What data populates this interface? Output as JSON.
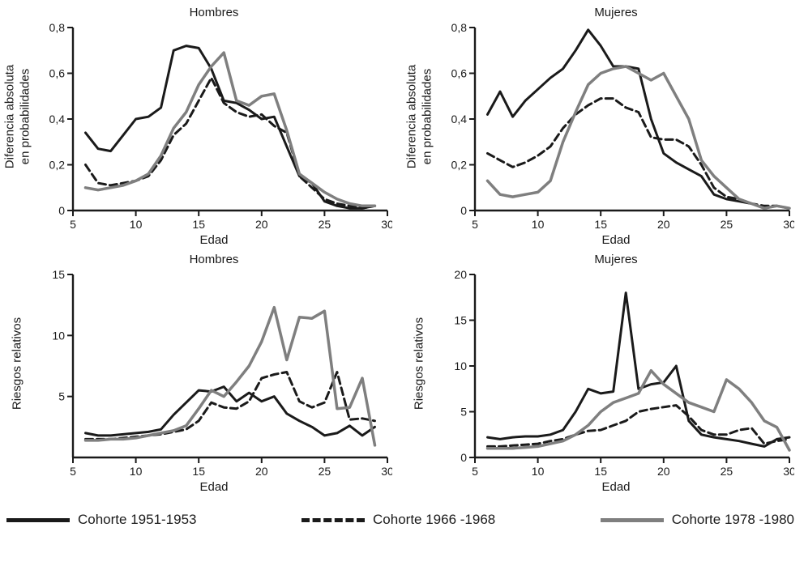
{
  "colors": {
    "axis": "#1a1a1a",
    "black": "#1a1a1a",
    "gray": "#7f7f7f",
    "background": "#ffffff"
  },
  "legend": [
    {
      "label": "Cohorte 1951-1953",
      "style": "solid",
      "color": "#1a1a1a"
    },
    {
      "label": "Cohorte 1966 -1968",
      "style": "dashed",
      "color": "#1a1a1a"
    },
    {
      "label": "Cohorte 1978 -1980",
      "style": "solid",
      "color": "#7f7f7f"
    }
  ],
  "chart_data": [
    {
      "type": "line",
      "title": "Hombres",
      "ylabel_line1": "Diferencia absoluta",
      "ylabel_line2": "en probabilidades",
      "xlabel": "Edad",
      "xlim": [
        5,
        30
      ],
      "ylim": [
        0,
        0.8
      ],
      "xticks": [
        5,
        10,
        15,
        20,
        25,
        30
      ],
      "ytick_values": [
        0,
        0.2,
        0.4,
        0.6,
        0.8
      ],
      "ytick_labels": [
        "0",
        "0,2",
        "0,4",
        "0,6",
        "0,8"
      ],
      "x": [
        6,
        7,
        8,
        9,
        10,
        11,
        12,
        13,
        14,
        15,
        16,
        17,
        18,
        19,
        20,
        21,
        22,
        23,
        24,
        25,
        26,
        27,
        28,
        29
      ],
      "series": [
        {
          "name": "Cohorte 1951-1953",
          "style": "solid",
          "color": "#1a1a1a",
          "stroke_width": 3,
          "values": [
            0.34,
            0.27,
            0.26,
            0.33,
            0.4,
            0.41,
            0.45,
            0.7,
            0.72,
            0.71,
            0.62,
            0.48,
            0.47,
            0.44,
            0.4,
            0.41,
            0.28,
            0.15,
            0.12,
            0.04,
            0.02,
            0.01,
            0.01,
            0.02
          ]
        },
        {
          "name": "Cohorte 1966 -1968",
          "style": "dashed",
          "color": "#1a1a1a",
          "stroke_width": 3,
          "values": [
            0.2,
            0.12,
            0.11,
            0.12,
            0.13,
            0.15,
            0.22,
            0.33,
            0.38,
            0.48,
            0.58,
            0.47,
            0.43,
            0.41,
            0.42,
            0.37,
            0.34,
            0.15,
            0.1,
            0.05,
            0.03,
            0.02,
            0.01,
            0.02
          ]
        },
        {
          "name": "Cohorte 1978 -1980",
          "style": "solid",
          "color": "#7f7f7f",
          "stroke_width": 3.5,
          "values": [
            0.1,
            0.09,
            0.1,
            0.11,
            0.13,
            0.16,
            0.24,
            0.36,
            0.43,
            0.55,
            0.63,
            0.69,
            0.48,
            0.46,
            0.5,
            0.51,
            0.35,
            0.16,
            0.12,
            0.08,
            0.05,
            0.03,
            0.02,
            0.02
          ]
        }
      ]
    },
    {
      "type": "line",
      "title": "Mujeres",
      "ylabel_line1": "Diferencia absoluta",
      "ylabel_line2": "en probabilidades",
      "xlabel": "Edad",
      "xlim": [
        5,
        30
      ],
      "ylim": [
        0,
        0.8
      ],
      "xticks": [
        5,
        10,
        15,
        20,
        25,
        30
      ],
      "ytick_values": [
        0,
        0.2,
        0.4,
        0.6,
        0.8
      ],
      "ytick_labels": [
        "0",
        "0,2",
        "0,4",
        "0,6",
        "0,8"
      ],
      "x": [
        6,
        7,
        8,
        9,
        10,
        11,
        12,
        13,
        14,
        15,
        16,
        17,
        18,
        19,
        20,
        21,
        22,
        23,
        24,
        25,
        26,
        27,
        28,
        29,
        30
      ],
      "series": [
        {
          "name": "Cohorte 1951-1953",
          "style": "solid",
          "color": "#1a1a1a",
          "stroke_width": 3,
          "values": [
            0.42,
            0.52,
            0.41,
            0.48,
            0.53,
            0.58,
            0.62,
            0.7,
            0.79,
            0.72,
            0.63,
            0.63,
            0.62,
            0.4,
            0.25,
            0.21,
            0.18,
            0.15,
            0.07,
            0.05,
            0.04,
            0.03,
            0.01,
            0.02,
            0.01
          ]
        },
        {
          "name": "Cohorte 1966 -1968",
          "style": "dashed",
          "color": "#1a1a1a",
          "stroke_width": 3,
          "values": [
            0.25,
            0.22,
            0.19,
            0.21,
            0.24,
            0.28,
            0.36,
            0.42,
            0.46,
            0.49,
            0.49,
            0.45,
            0.43,
            0.32,
            0.31,
            0.31,
            0.28,
            0.2,
            0.1,
            0.06,
            0.05,
            0.03,
            0.02,
            0.02,
            0.01
          ]
        },
        {
          "name": "Cohorte 1978 -1980",
          "style": "solid",
          "color": "#7f7f7f",
          "stroke_width": 3.5,
          "values": [
            0.13,
            0.07,
            0.06,
            0.07,
            0.08,
            0.13,
            0.3,
            0.43,
            0.55,
            0.6,
            0.62,
            0.63,
            0.6,
            0.57,
            0.6,
            0.5,
            0.4,
            0.22,
            0.15,
            0.1,
            0.05,
            0.03,
            0.01,
            0.02,
            0.01
          ]
        }
      ]
    },
    {
      "type": "line",
      "title": "Hombres",
      "ylabel_line1": "Riesgos relativos",
      "ylabel_line2": "",
      "xlabel": "Edad",
      "xlim": [
        5,
        30
      ],
      "ylim": [
        0,
        15
      ],
      "xticks": [
        5,
        10,
        15,
        20,
        25,
        30
      ],
      "ytick_values": [
        5,
        10,
        15
      ],
      "ytick_labels": [
        "5",
        "10",
        "15"
      ],
      "x": [
        6,
        7,
        8,
        9,
        10,
        11,
        12,
        13,
        14,
        15,
        16,
        17,
        18,
        19,
        20,
        21,
        22,
        23,
        24,
        25,
        26,
        27,
        28,
        29
      ],
      "series": [
        {
          "name": "Cohorte 1951-1953",
          "style": "solid",
          "color": "#1a1a1a",
          "stroke_width": 3,
          "values": [
            2.0,
            1.8,
            1.8,
            1.9,
            2.0,
            2.1,
            2.3,
            3.5,
            4.5,
            5.5,
            5.4,
            5.8,
            4.6,
            5.3,
            4.6,
            5.0,
            3.6,
            3.0,
            2.5,
            1.8,
            2.0,
            2.6,
            1.8,
            2.5
          ]
        },
        {
          "name": "Cohorte 1966 -1968",
          "style": "dashed",
          "color": "#1a1a1a",
          "stroke_width": 3,
          "values": [
            1.5,
            1.5,
            1.5,
            1.6,
            1.7,
            1.8,
            1.9,
            2.1,
            2.3,
            3.0,
            4.5,
            4.1,
            4.0,
            4.6,
            6.5,
            6.8,
            7.0,
            4.6,
            4.1,
            4.5,
            7.0,
            3.1,
            3.2,
            3.0
          ]
        },
        {
          "name": "Cohorte 1978 -1980",
          "style": "solid",
          "color": "#7f7f7f",
          "stroke_width": 3.5,
          "values": [
            1.4,
            1.4,
            1.5,
            1.5,
            1.6,
            1.8,
            2.0,
            2.2,
            2.6,
            4.0,
            5.5,
            5.0,
            6.2,
            7.5,
            9.5,
            12.3,
            8.0,
            11.5,
            11.4,
            12.0,
            4.0,
            4.1,
            6.5,
            1.0
          ]
        }
      ]
    },
    {
      "type": "line",
      "title": "Mujeres",
      "ylabel_line1": "Riesgos relativos",
      "ylabel_line2": "",
      "xlabel": "Edad",
      "xlim": [
        5,
        30
      ],
      "ylim": [
        0,
        20
      ],
      "xticks": [
        5,
        10,
        15,
        20,
        25,
        30
      ],
      "ytick_values": [
        0,
        5,
        10,
        15,
        20
      ],
      "ytick_labels": [
        "0",
        "5",
        "10",
        "15",
        "20"
      ],
      "x": [
        6,
        7,
        8,
        9,
        10,
        11,
        12,
        13,
        14,
        15,
        16,
        17,
        18,
        19,
        20,
        21,
        22,
        23,
        24,
        25,
        26,
        27,
        28,
        29,
        30
      ],
      "series": [
        {
          "name": "Cohorte 1951-1953",
          "style": "solid",
          "color": "#1a1a1a",
          "stroke_width": 3,
          "values": [
            2.2,
            2.0,
            2.2,
            2.3,
            2.3,
            2.5,
            3.0,
            5.0,
            7.5,
            7.0,
            7.2,
            18.0,
            7.5,
            8.0,
            8.2,
            10.0,
            4.0,
            2.5,
            2.2,
            2.0,
            1.8,
            1.5,
            1.2,
            2.0,
            2.2
          ]
        },
        {
          "name": "Cohorte 1966 -1968",
          "style": "dashed",
          "color": "#1a1a1a",
          "stroke_width": 3,
          "values": [
            1.2,
            1.2,
            1.3,
            1.4,
            1.5,
            1.8,
            2.0,
            2.5,
            2.9,
            3.0,
            3.5,
            4.0,
            5.0,
            5.3,
            5.5,
            5.7,
            4.5,
            3.0,
            2.5,
            2.5,
            3.0,
            3.2,
            1.5,
            1.8,
            2.0
          ]
        },
        {
          "name": "Cohorte 1978 -1980",
          "style": "solid",
          "color": "#7f7f7f",
          "stroke_width": 3.5,
          "values": [
            1.0,
            1.0,
            1.0,
            1.1,
            1.2,
            1.5,
            1.8,
            2.5,
            3.5,
            5.0,
            6.0,
            6.5,
            7.0,
            9.5,
            8.0,
            7.0,
            6.0,
            5.5,
            5.0,
            8.5,
            7.5,
            6.0,
            4.0,
            3.3,
            0.8
          ]
        }
      ]
    }
  ]
}
